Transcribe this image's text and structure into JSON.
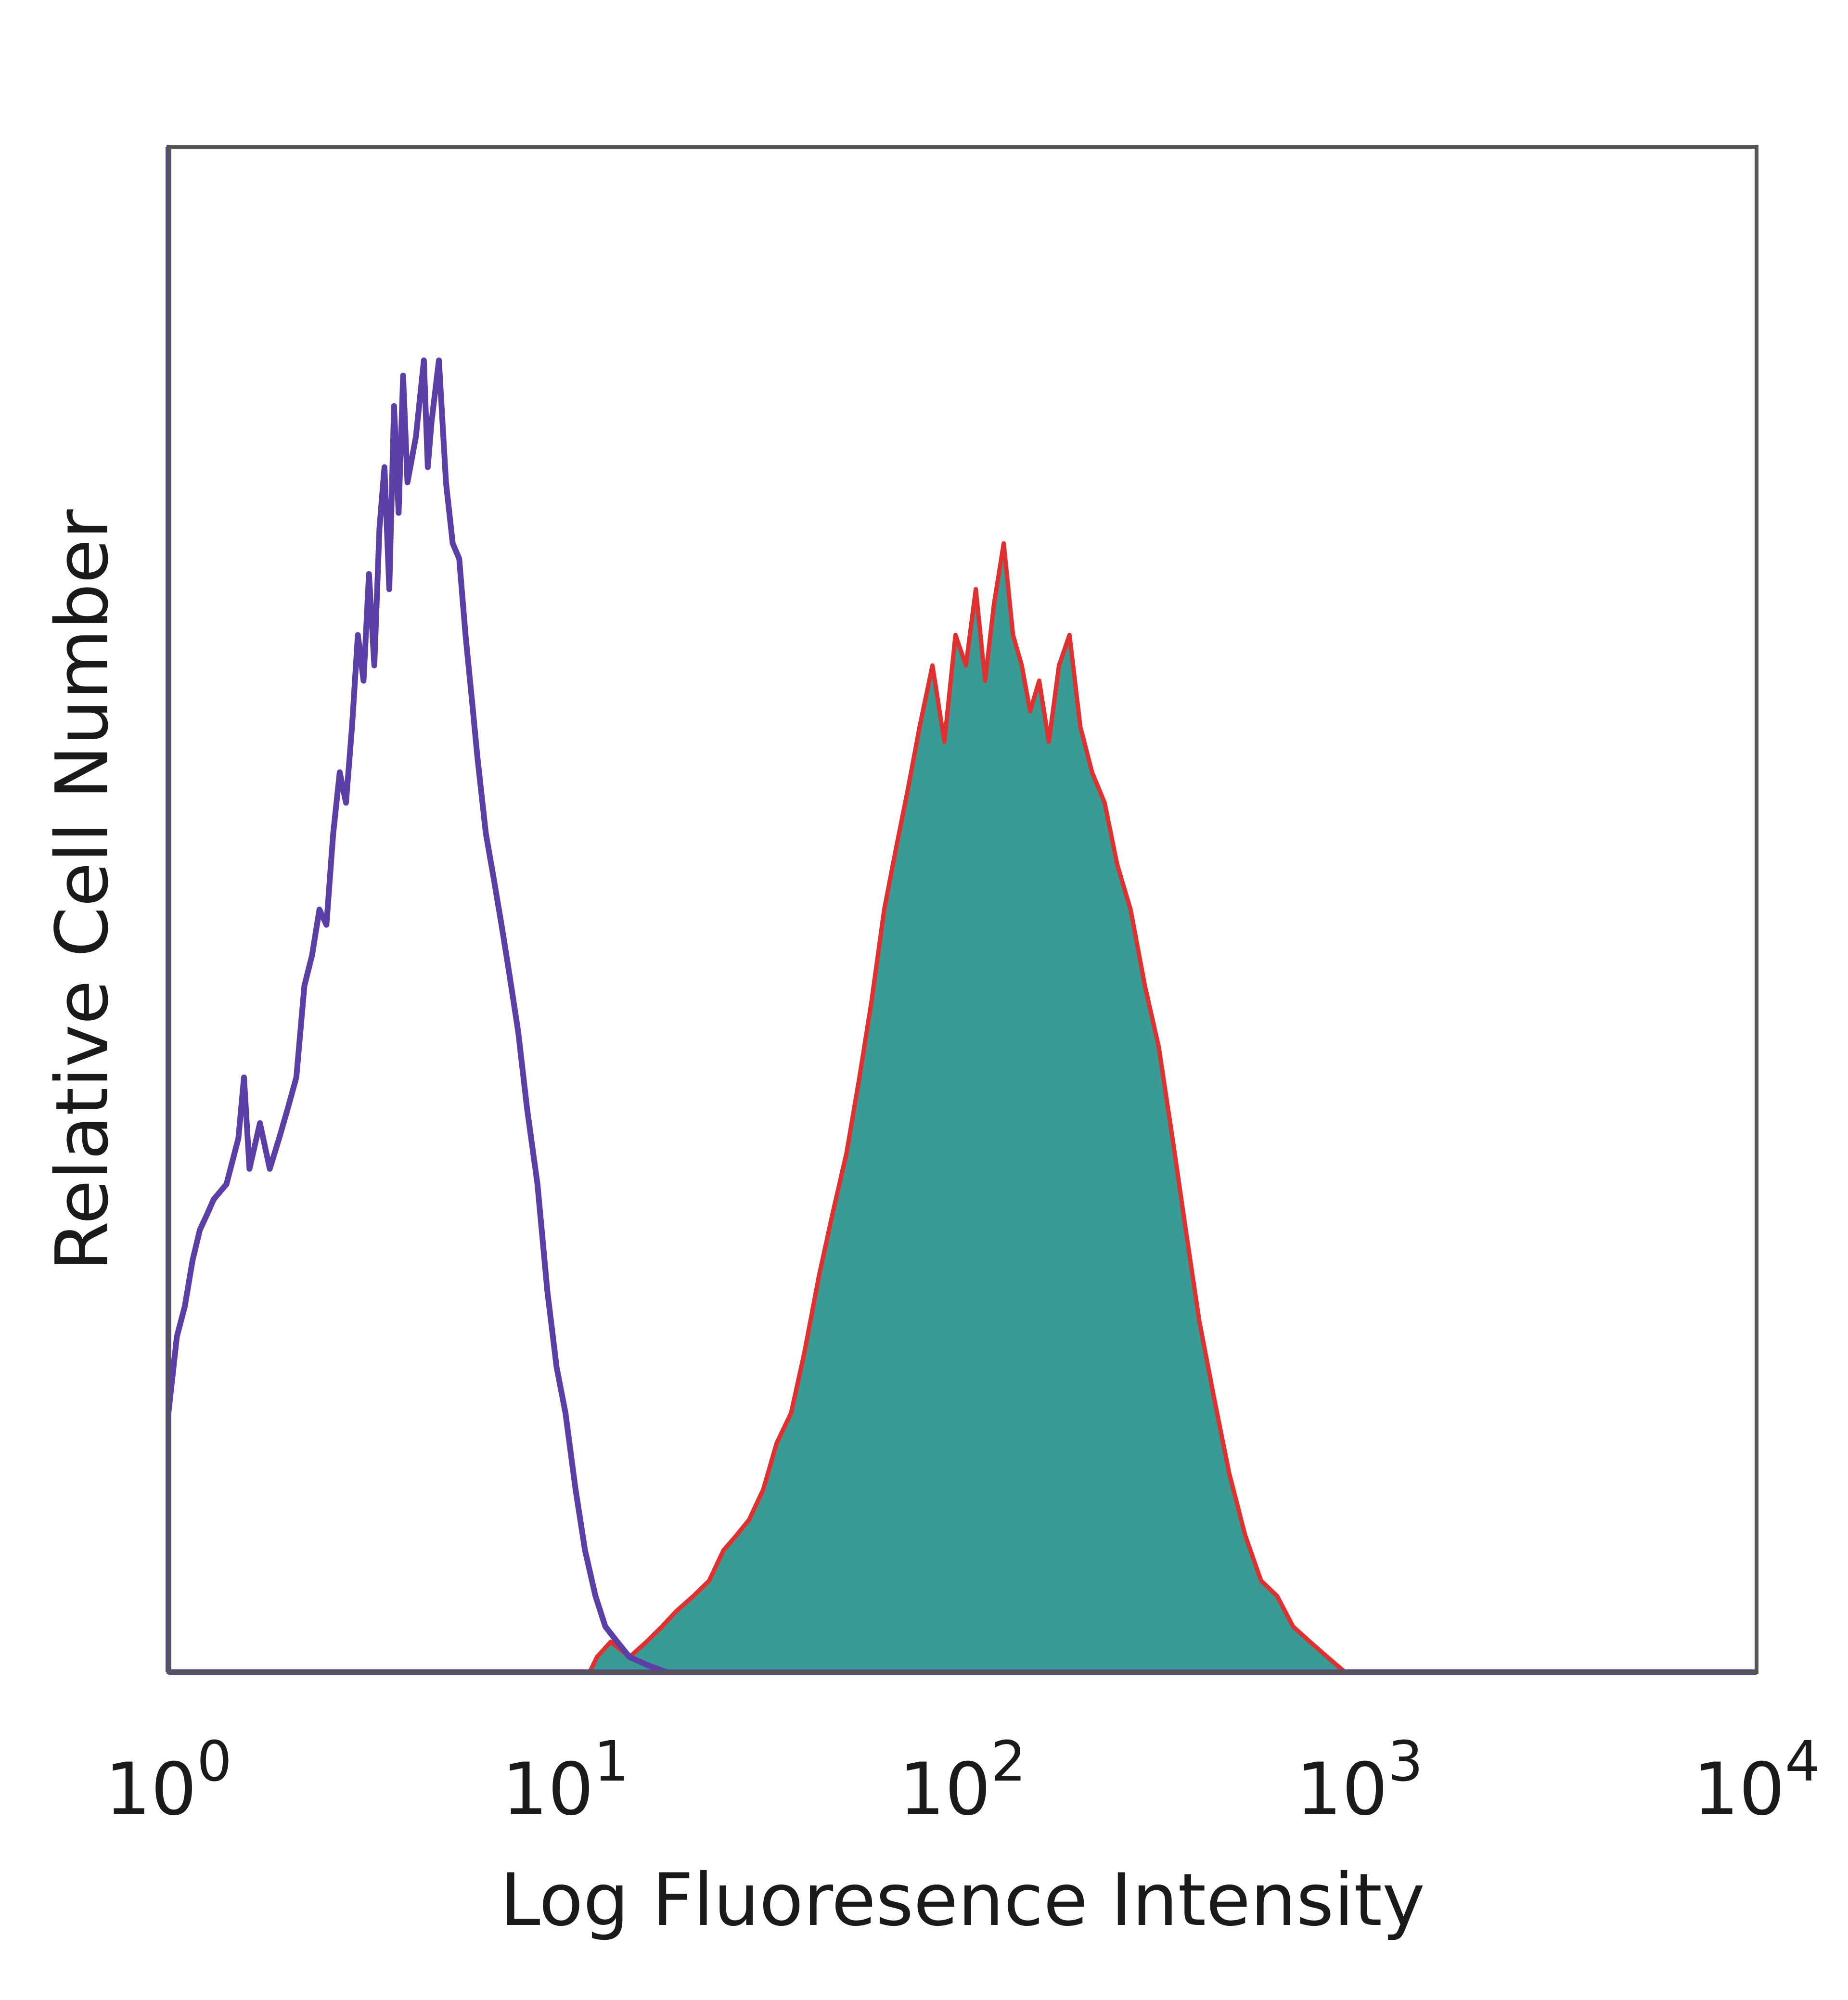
{
  "chart_data": {
    "type": "histogram",
    "title": "",
    "xlabel": "Log Fluoresence Intensity",
    "ylabel": "Relative Cell Number",
    "x_scale": "log",
    "xlim": [
      1,
      10000
    ],
    "ylim": [
      0,
      1
    ],
    "grid": false,
    "x_ticks": [
      {
        "value": 1,
        "base": "10",
        "exp": "0"
      },
      {
        "value": 10,
        "base": "10",
        "exp": "1"
      },
      {
        "value": 100,
        "base": "10",
        "exp": "2"
      },
      {
        "value": 1000,
        "base": "10",
        "exp": "3"
      },
      {
        "value": 10000,
        "base": "10",
        "exp": "4"
      }
    ],
    "series": [
      {
        "style": "outline",
        "color": "#5b3fa6",
        "points": [
          [
            1.0,
            0.17
          ],
          [
            1.05,
            0.22
          ],
          [
            1.1,
            0.24
          ],
          [
            1.15,
            0.27
          ],
          [
            1.2,
            0.29
          ],
          [
            1.25,
            0.3
          ],
          [
            1.3,
            0.31
          ],
          [
            1.4,
            0.32
          ],
          [
            1.5,
            0.35
          ],
          [
            1.55,
            0.39
          ],
          [
            1.6,
            0.33
          ],
          [
            1.7,
            0.36
          ],
          [
            1.8,
            0.33
          ],
          [
            1.9,
            0.35
          ],
          [
            2.0,
            0.37
          ],
          [
            2.1,
            0.39
          ],
          [
            2.2,
            0.45
          ],
          [
            2.3,
            0.47
          ],
          [
            2.4,
            0.5
          ],
          [
            2.5,
            0.49
          ],
          [
            2.6,
            0.55
          ],
          [
            2.7,
            0.59
          ],
          [
            2.8,
            0.57
          ],
          [
            2.9,
            0.62
          ],
          [
            3.0,
            0.68
          ],
          [
            3.1,
            0.65
          ],
          [
            3.2,
            0.72
          ],
          [
            3.3,
            0.66
          ],
          [
            3.4,
            0.75
          ],
          [
            3.5,
            0.79
          ],
          [
            3.6,
            0.71
          ],
          [
            3.7,
            0.83
          ],
          [
            3.8,
            0.76
          ],
          [
            3.9,
            0.85
          ],
          [
            4.0,
            0.78
          ],
          [
            4.2,
            0.81
          ],
          [
            4.4,
            0.86
          ],
          [
            4.5,
            0.79
          ],
          [
            4.6,
            0.82
          ],
          [
            4.8,
            0.86
          ],
          [
            5.0,
            0.78
          ],
          [
            5.2,
            0.74
          ],
          [
            5.4,
            0.73
          ],
          [
            5.6,
            0.68
          ],
          [
            5.8,
            0.64
          ],
          [
            6.0,
            0.6
          ],
          [
            6.3,
            0.55
          ],
          [
            6.6,
            0.52
          ],
          [
            6.9,
            0.49
          ],
          [
            7.2,
            0.46
          ],
          [
            7.6,
            0.42
          ],
          [
            8.0,
            0.37
          ],
          [
            8.5,
            0.32
          ],
          [
            9.0,
            0.25
          ],
          [
            9.5,
            0.2
          ],
          [
            10.0,
            0.17
          ],
          [
            10.6,
            0.12
          ],
          [
            11.2,
            0.08
          ],
          [
            11.9,
            0.05
          ],
          [
            12.6,
            0.03
          ],
          [
            13.5,
            0.02
          ],
          [
            14.5,
            0.01
          ],
          [
            16.0,
            0.005
          ],
          [
            18.0,
            0.0
          ],
          [
            10000,
            0.0
          ]
        ]
      },
      {
        "style": "filled",
        "color": "#3a9a94",
        "line_color": "#e03030",
        "points": [
          [
            1.0,
            0.0
          ],
          [
            11.5,
            0.0
          ],
          [
            12.0,
            0.01
          ],
          [
            13.0,
            0.02
          ],
          [
            14.5,
            0.01
          ],
          [
            16.0,
            0.02
          ],
          [
            17.5,
            0.03
          ],
          [
            19.0,
            0.04
          ],
          [
            21.0,
            0.05
          ],
          [
            23.0,
            0.06
          ],
          [
            25.0,
            0.08
          ],
          [
            27.0,
            0.09
          ],
          [
            29.0,
            0.1
          ],
          [
            31.5,
            0.12
          ],
          [
            34.0,
            0.15
          ],
          [
            37.0,
            0.17
          ],
          [
            40.0,
            0.21
          ],
          [
            43.5,
            0.26
          ],
          [
            47.0,
            0.3
          ],
          [
            51.0,
            0.34
          ],
          [
            55.0,
            0.39
          ],
          [
            59.0,
            0.44
          ],
          [
            63.5,
            0.5
          ],
          [
            68.0,
            0.54
          ],
          [
            73.0,
            0.58
          ],
          [
            78.0,
            0.62
          ],
          [
            84.0,
            0.66
          ],
          [
            90.0,
            0.61
          ],
          [
            96.0,
            0.68
          ],
          [
            102,
            0.66
          ],
          [
            108,
            0.71
          ],
          [
            114,
            0.65
          ],
          [
            120,
            0.7
          ],
          [
            127,
            0.74
          ],
          [
            134,
            0.68
          ],
          [
            141,
            0.66
          ],
          [
            148,
            0.63
          ],
          [
            156,
            0.65
          ],
          [
            165,
            0.61
          ],
          [
            175,
            0.66
          ],
          [
            186,
            0.68
          ],
          [
            198,
            0.62
          ],
          [
            212,
            0.59
          ],
          [
            228,
            0.57
          ],
          [
            245,
            0.53
          ],
          [
            265,
            0.5
          ],
          [
            288,
            0.45
          ],
          [
            312,
            0.41
          ],
          [
            338,
            0.35
          ],
          [
            365,
            0.29
          ],
          [
            395,
            0.23
          ],
          [
            430,
            0.18
          ],
          [
            470,
            0.13
          ],
          [
            515,
            0.09
          ],
          [
            565,
            0.06
          ],
          [
            620,
            0.05
          ],
          [
            680,
            0.03
          ],
          [
            750,
            0.02
          ],
          [
            830,
            0.01
          ],
          [
            920,
            0.0
          ],
          [
            10000,
            0.0
          ]
        ]
      }
    ]
  }
}
